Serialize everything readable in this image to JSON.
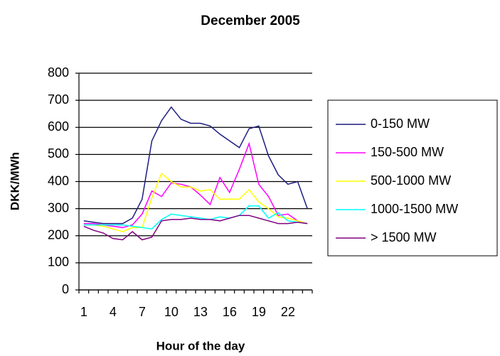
{
  "chart_data": {
    "type": "line",
    "title": "December 2005",
    "x_label": "Hour of the day",
    "y_label": "DKK/MWh",
    "categories": [
      1,
      null,
      null,
      4,
      null,
      null,
      7,
      null,
      null,
      10,
      null,
      null,
      13,
      null,
      null,
      16,
      null,
      null,
      19,
      null,
      null,
      22,
      null,
      null
    ],
    "ylim": [
      0,
      800
    ],
    "yticks": [
      0,
      100,
      200,
      300,
      400,
      500,
      600,
      700,
      800
    ],
    "grid": true,
    "legend": "right",
    "series": [
      {
        "name": "0-150 MW",
        "color": "#1c1c80",
        "values": [
          255,
          250,
          245,
          245,
          245,
          265,
          335,
          550,
          625,
          675,
          630,
          615,
          615,
          605,
          575,
          550,
          525,
          595,
          605,
          495,
          425,
          390,
          400,
          300
        ]
      },
      {
        "name": "150-500 MW",
        "color": "#ff00ff",
        "values": [
          245,
          245,
          240,
          235,
          230,
          240,
          280,
          365,
          345,
          395,
          390,
          380,
          350,
          315,
          415,
          360,
          445,
          540,
          390,
          345,
          275,
          280,
          255,
          245
        ]
      },
      {
        "name": "500-1000 MW",
        "color": "#ffff00",
        "values": [
          240,
          240,
          235,
          225,
          215,
          230,
          230,
          340,
          430,
          400,
          380,
          380,
          365,
          370,
          335,
          335,
          335,
          370,
          325,
          300,
          270,
          265,
          255,
          245
        ]
      },
      {
        "name": "1000-1500 MW",
        "color": "#00ffff",
        "values": [
          240,
          240,
          240,
          240,
          240,
          235,
          230,
          225,
          260,
          280,
          275,
          270,
          265,
          260,
          270,
          265,
          275,
          310,
          310,
          265,
          285,
          255,
          250,
          245
        ]
      },
      {
        "name": "> 1500 MW",
        "color": "#800080",
        "values": [
          235,
          220,
          210,
          190,
          185,
          215,
          185,
          195,
          255,
          260,
          260,
          265,
          260,
          260,
          255,
          265,
          275,
          275,
          265,
          255,
          245,
          245,
          250,
          245
        ]
      }
    ]
  }
}
